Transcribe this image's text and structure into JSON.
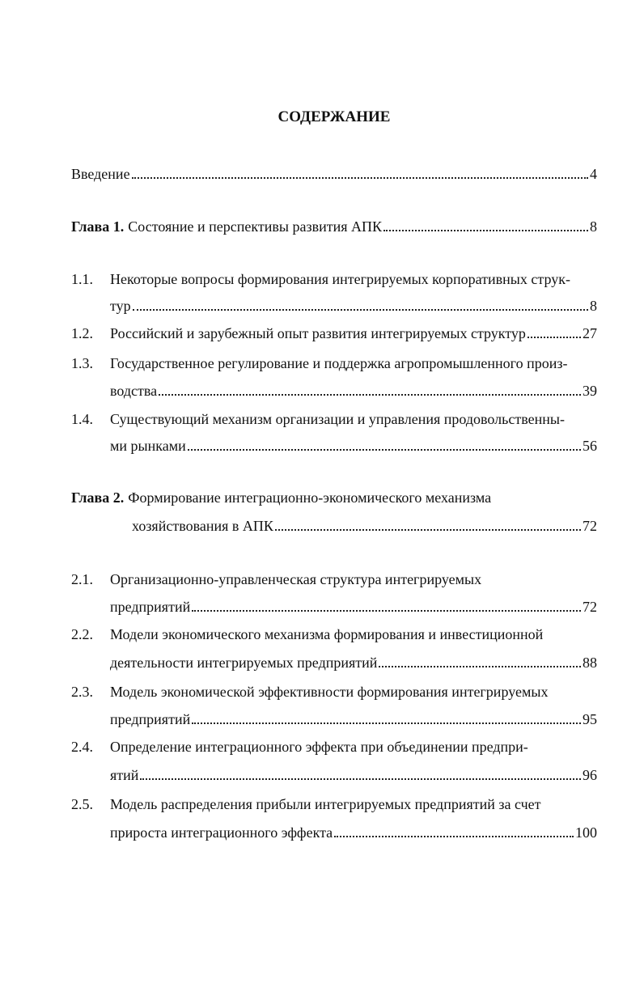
{
  "title": "СОДЕРЖАНИЕ",
  "entries": [
    {
      "lines": [
        "Введение"
      ],
      "page": 4
    },
    {
      "number": "Глава 1.",
      "lines": [
        "Состояние и перспективы развития АПК"
      ],
      "page": 8
    },
    {
      "number": "1.1.",
      "lines": [
        "Некоторые вопросы формирования интегрируемых корпоративных струк-",
        "тур"
      ],
      "page": 8
    },
    {
      "number": "1.2.",
      "lines": [
        "Российский и зарубежный опыт развития интегрируемых структур"
      ],
      "page": 27
    },
    {
      "number": "1.3.",
      "lines": [
        "Государственное регулирование и поддержка агропромышленного произ-",
        "водства"
      ],
      "page": 39
    },
    {
      "number": "1.4.",
      "lines": [
        "Существующий механизм организации и управления продовольственны-",
        "ми рынками"
      ],
      "page": 56
    },
    {
      "number": "Глава 2.",
      "lines": [
        "Формирование интеграционно-экономического механизма",
        "хозяйствования в АПК"
      ],
      "page": 72
    },
    {
      "number": "2.1.",
      "lines": [
        "Организационно-управленческая структура интегрируемых",
        "предприятий"
      ],
      "page": 72
    },
    {
      "number": "2.2.",
      "lines": [
        "Модели экономического механизма формирования и инвестиционной",
        "деятельности интегрируемых предприятий"
      ],
      "page": 88
    },
    {
      "number": "2.3.",
      "lines": [
        "Модель экономической эффективности формирования интегрируемых",
        "предприятий"
      ],
      "page": 95
    },
    {
      "number": "2.4.",
      "lines": [
        "Определение интеграционного эффекта при объединении предпри-",
        "ятий"
      ],
      "page": 96
    },
    {
      "number": "2.5.",
      "lines": [
        "Модель распределения прибыли интегрируемых предприятий за счет",
        "прироста интеграционного эффекта"
      ],
      "page": 100
    }
  ]
}
